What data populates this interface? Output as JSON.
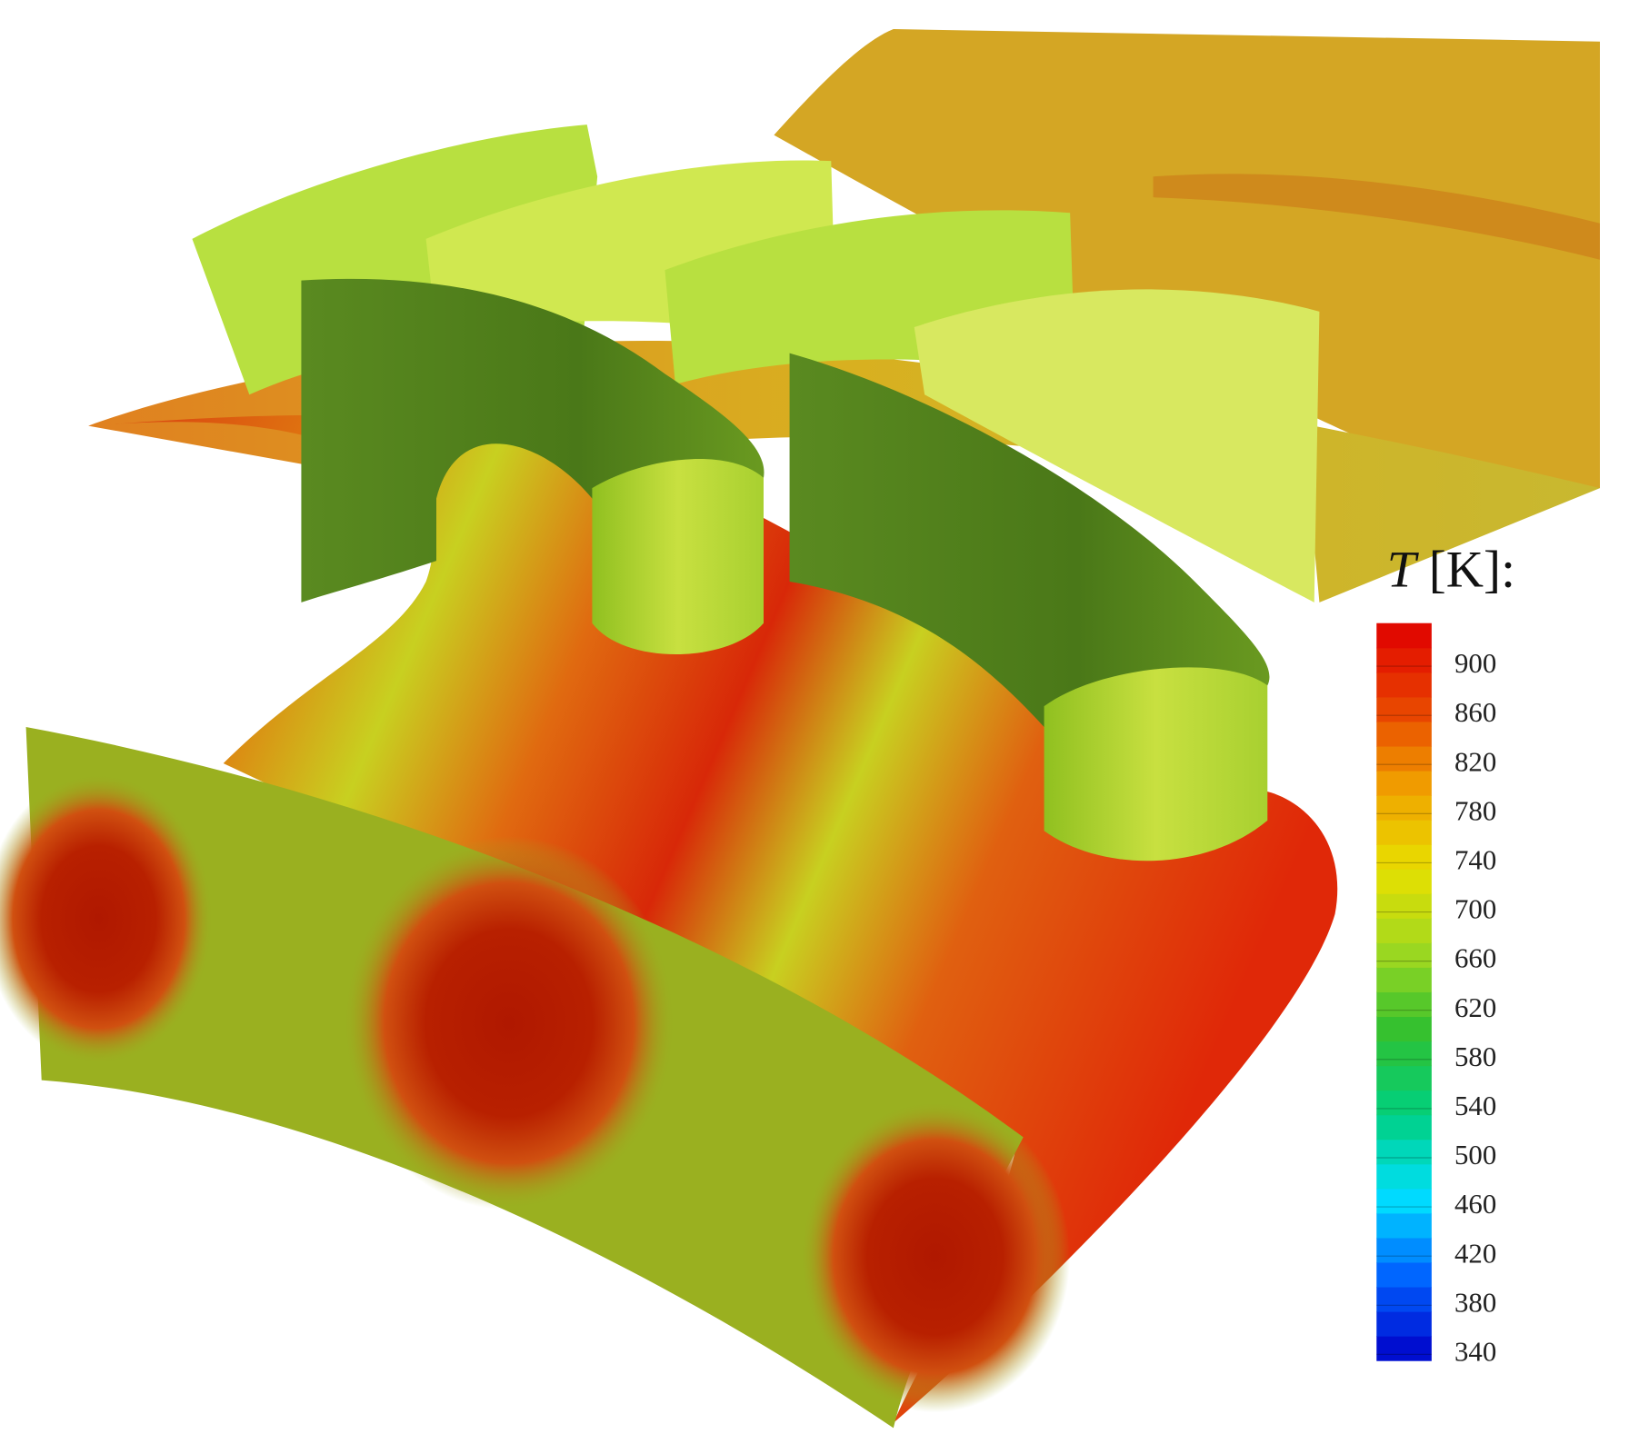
{
  "colorbar": {
    "variable": "T",
    "unit": "[K]:",
    "range": [
      335,
      935
    ],
    "ticks": [
      900,
      860,
      820,
      780,
      740,
      700,
      660,
      620,
      580,
      540,
      500,
      460,
      420,
      380,
      340
    ],
    "colormap": [
      "#0000c8",
      "#0060ff",
      "#00e0ff",
      "#00d080",
      "#30c030",
      "#a0d820",
      "#e8e000",
      "#f0a000",
      "#e84000",
      "#e00000"
    ]
  }
}
